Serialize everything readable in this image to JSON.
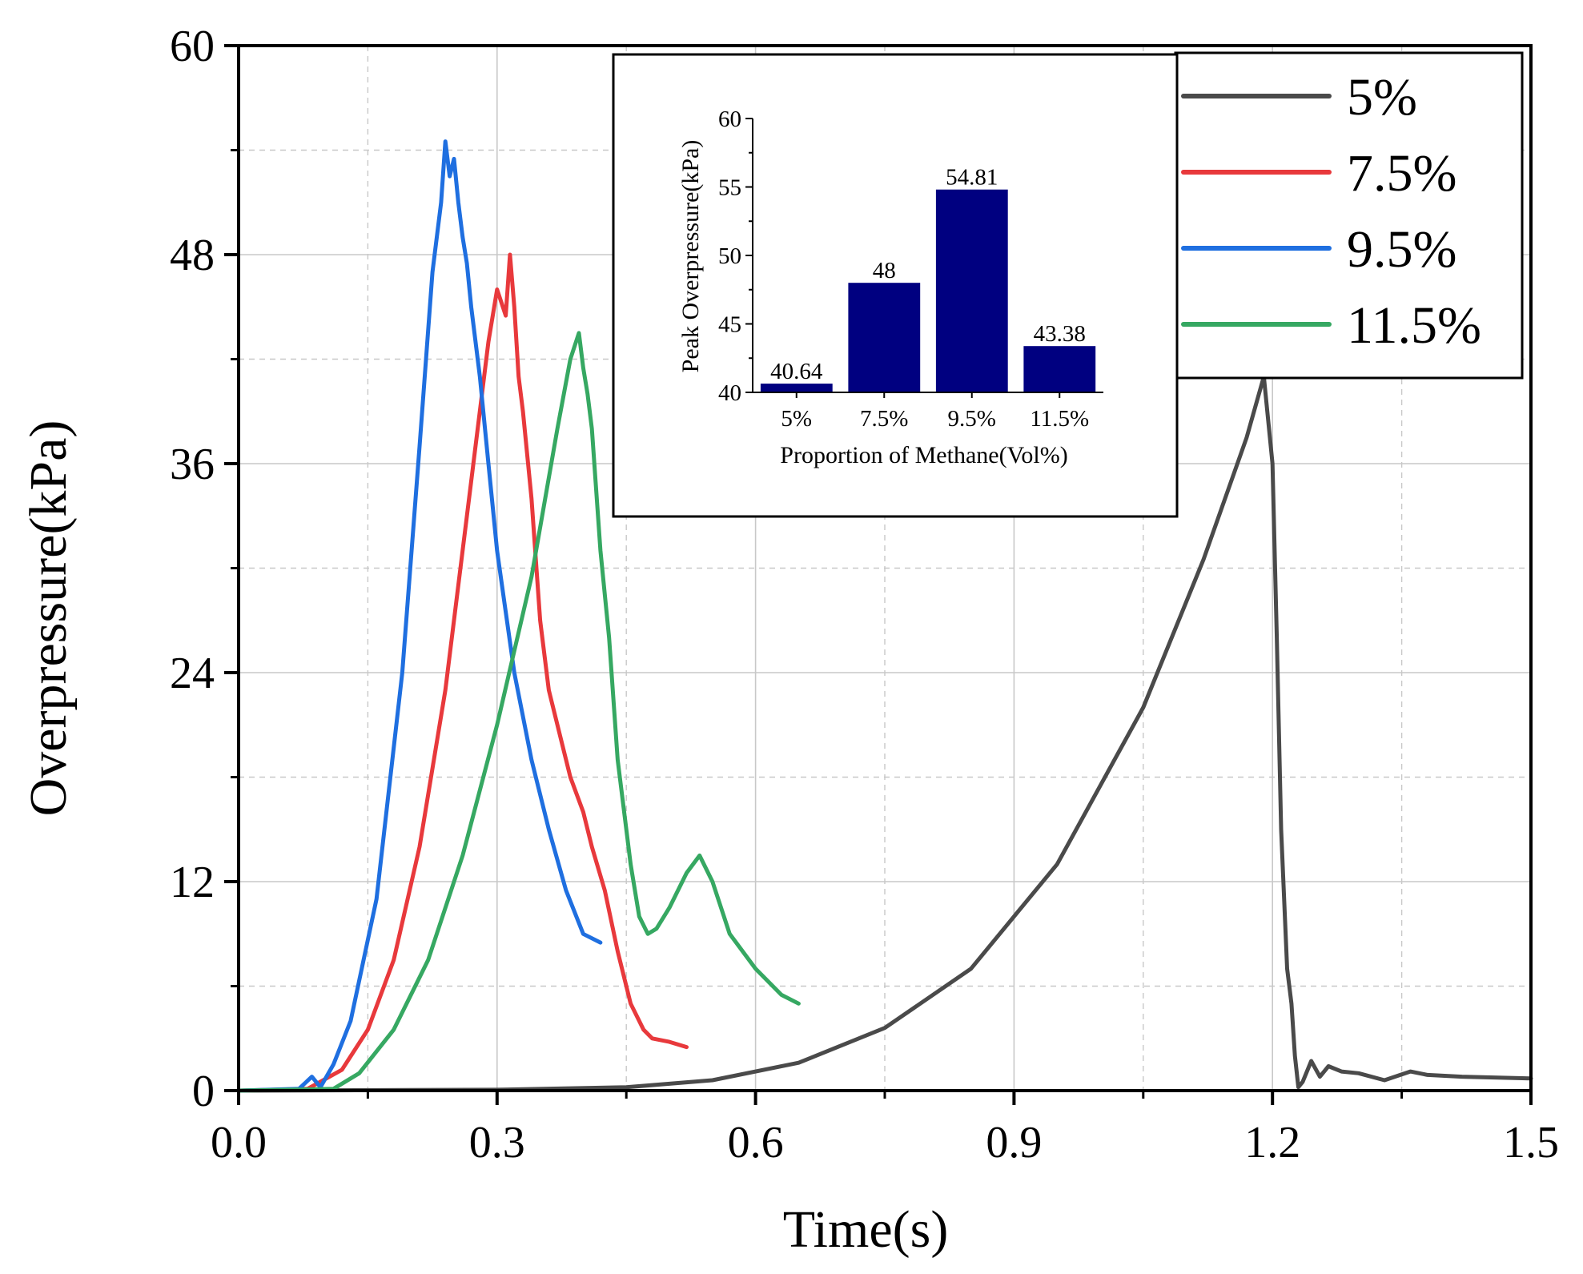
{
  "chart_data": [
    {
      "type": "line",
      "xlabel": "Time(s)",
      "ylabel": "Overpressure(kPa)",
      "xlim": [
        0.0,
        1.5
      ],
      "ylim": [
        0,
        60
      ],
      "xticks": [
        "0.0",
        "0.3",
        "0.6",
        "0.9",
        "1.2",
        "1.5"
      ],
      "yticks": [
        "0",
        "12",
        "24",
        "36",
        "48",
        "60"
      ],
      "grid": true,
      "legend_position": "top-right",
      "series": [
        {
          "name": "5%",
          "color": "#4a4a4a",
          "x": [
            0.0,
            0.3,
            0.45,
            0.55,
            0.65,
            0.75,
            0.85,
            0.95,
            1.05,
            1.12,
            1.17,
            1.19,
            1.2,
            1.205,
            1.21,
            1.217,
            1.222,
            1.226,
            1.23,
            1.235,
            1.245,
            1.255,
            1.265,
            1.28,
            1.3,
            1.33,
            1.36,
            1.38,
            1.42,
            1.5
          ],
          "y": [
            0.0,
            0.05,
            0.2,
            0.6,
            1.6,
            3.6,
            7.0,
            13.0,
            22.0,
            30.5,
            37.5,
            41.0,
            36.0,
            26.0,
            15.0,
            7.0,
            5.0,
            2.0,
            0.2,
            0.5,
            1.7,
            0.8,
            1.4,
            1.1,
            1.0,
            0.6,
            1.1,
            0.9,
            0.8,
            0.7
          ]
        },
        {
          "name": "7.5%",
          "color": "#e8393c",
          "x": [
            0.0,
            0.08,
            0.12,
            0.15,
            0.18,
            0.21,
            0.24,
            0.27,
            0.29,
            0.3,
            0.31,
            0.315,
            0.32,
            0.325,
            0.33,
            0.34,
            0.35,
            0.36,
            0.375,
            0.385,
            0.4,
            0.41,
            0.425,
            0.44,
            0.455,
            0.47,
            0.48,
            0.5,
            0.52
          ],
          "y": [
            0.0,
            0.1,
            1.2,
            3.5,
            7.5,
            14.0,
            23.0,
            35.0,
            43.0,
            46.0,
            44.5,
            48.0,
            45.0,
            41.0,
            39.0,
            34.0,
            27.0,
            23.0,
            20.0,
            18.0,
            16.0,
            14.0,
            11.5,
            8.0,
            5.0,
            3.5,
            3.0,
            2.8,
            2.5
          ]
        },
        {
          "name": "9.5%",
          "color": "#1f6fe0",
          "x": [
            0.0,
            0.07,
            0.085,
            0.095,
            0.11,
            0.13,
            0.16,
            0.19,
            0.21,
            0.225,
            0.235,
            0.24,
            0.245,
            0.25,
            0.255,
            0.26,
            0.265,
            0.27,
            0.28,
            0.29,
            0.3,
            0.32,
            0.34,
            0.36,
            0.38,
            0.4,
            0.42
          ],
          "y": [
            0.0,
            0.1,
            0.8,
            0.2,
            1.5,
            4.0,
            11.0,
            24.0,
            37.0,
            47.0,
            51.0,
            54.5,
            52.5,
            53.5,
            51.0,
            49.0,
            47.5,
            45.0,
            41.0,
            36.0,
            31.0,
            24.0,
            19.0,
            15.0,
            11.5,
            9.0,
            8.5
          ]
        },
        {
          "name": "11.5%",
          "color": "#36a862",
          "x": [
            0.0,
            0.11,
            0.14,
            0.18,
            0.22,
            0.26,
            0.3,
            0.34,
            0.37,
            0.385,
            0.395,
            0.4,
            0.405,
            0.41,
            0.42,
            0.43,
            0.44,
            0.455,
            0.465,
            0.475,
            0.485,
            0.5,
            0.52,
            0.535,
            0.55,
            0.57,
            0.6,
            0.63,
            0.65
          ],
          "y": [
            0.0,
            0.1,
            1.0,
            3.5,
            7.5,
            13.5,
            21.0,
            29.5,
            38.0,
            42.0,
            43.5,
            41.5,
            40.0,
            38.0,
            31.0,
            26.0,
            19.0,
            13.0,
            10.0,
            9.0,
            9.3,
            10.5,
            12.5,
            13.5,
            12.0,
            9.0,
            7.0,
            5.5,
            5.0
          ]
        }
      ]
    },
    {
      "type": "bar",
      "title": "",
      "xlabel": "Proportion of Methane(Vol%)",
      "ylabel": "Peak Overpressure(kPa)",
      "categories": [
        "5%",
        "7.5%",
        "9.5%",
        "11.5%"
      ],
      "values": [
        40.64,
        48,
        54.81,
        43.38
      ],
      "value_labels": [
        "40.64",
        "48",
        "54.81",
        "43.38"
      ],
      "ylim": [
        40,
        60
      ],
      "yticks": [
        "40",
        "45",
        "50",
        "55",
        "60"
      ],
      "bar_color": "#000080",
      "position": "inset-top-center"
    }
  ]
}
